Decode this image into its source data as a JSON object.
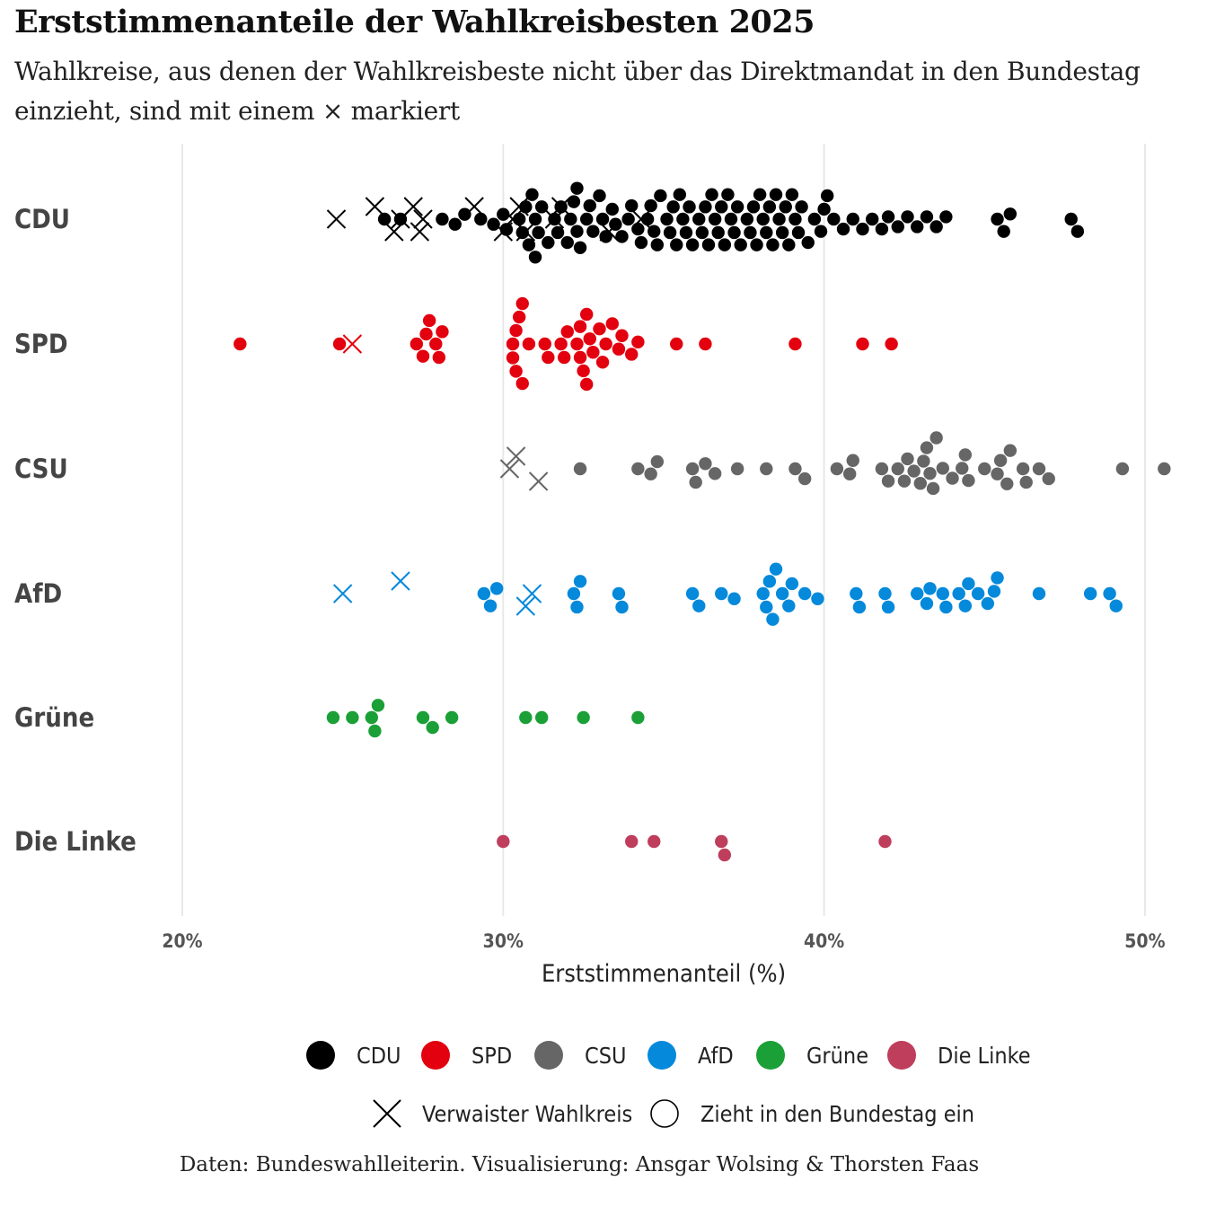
{
  "title": "Erststimmenanteile der Wahlkreisbesten 2025",
  "subtitle": "Wahlkreise, aus denen der Wahlkreisbeste nicht über das Direktmandat in den Bundestag einzieht, sind mit einem × markiert",
  "caption": "Daten: Bundeswahlleiterin. Visualisierung: Ansgar Wolsing & Thorsten Faas",
  "colors": {
    "CDU": "#000000",
    "SPD": "#e3000f",
    "CSU": "#666666",
    "AfD": "#0489db",
    "Grüne": "#1aa037",
    "Die Linke": "#be3e5c",
    "grid": "#e8e8e8"
  },
  "chart_data": {
    "type": "scatter",
    "subtype": "beeswarm",
    "title": "Erststimmenanteile der Wahlkreisbesten 2025",
    "xlabel": "Erststimmenanteil (%)",
    "ylabel": "",
    "xlim": [
      17,
      51
    ],
    "x_ticks": [
      20,
      30,
      40,
      50
    ],
    "x_tick_labels": [
      "20%",
      "30%",
      "40%",
      "50%"
    ],
    "categories": [
      "CDU",
      "SPD",
      "CSU",
      "AfD",
      "Grüne",
      "Die Linke"
    ],
    "grid": true,
    "legend_position": "bottom",
    "legend": {
      "parties": [
        "CDU",
        "SPD",
        "CSU",
        "AfD",
        "Grüne",
        "Die Linke"
      ],
      "shapes": [
        {
          "shape": "cross",
          "label": "Verwaister Wahlkreis"
        },
        {
          "shape": "circle",
          "label": "Zieht in den Bundestag ein"
        }
      ]
    },
    "series": [
      {
        "name": "CDU",
        "values": [
          26.3,
          26.8,
          28.1,
          28.5,
          28.8,
          29.3,
          29.7,
          30.0,
          30.1,
          30.5,
          30.6,
          30.7,
          30.8,
          30.9,
          31.0,
          31.0,
          31.1,
          31.2,
          31.4,
          31.6,
          31.7,
          31.8,
          32.0,
          32.1,
          32.2,
          32.3,
          32.3,
          32.4,
          32.6,
          32.7,
          32.8,
          33.0,
          33.1,
          33.2,
          33.4,
          33.5,
          33.7,
          33.9,
          34.0,
          34.2,
          34.3,
          34.5,
          34.6,
          34.7,
          34.8,
          34.9,
          35.1,
          35.2,
          35.3,
          35.4,
          35.5,
          35.6,
          35.7,
          35.8,
          35.9,
          36.1,
          36.2,
          36.3,
          36.4,
          36.5,
          36.6,
          36.7,
          36.8,
          36.9,
          37.0,
          37.1,
          37.2,
          37.3,
          37.4,
          37.6,
          37.7,
          37.8,
          37.9,
          38.0,
          38.1,
          38.2,
          38.3,
          38.4,
          38.5,
          38.6,
          38.7,
          38.8,
          38.9,
          39.0,
          39.1,
          39.2,
          39.3,
          39.5,
          39.7,
          39.9,
          40.0,
          40.1,
          40.3,
          40.6,
          40.9,
          41.2,
          41.5,
          41.8,
          42.0,
          42.3,
          42.6,
          42.9,
          43.2,
          43.5,
          43.8,
          45.4,
          45.6,
          45.8,
          47.7,
          47.9
        ],
        "orphaned": [
          24.8,
          26.0,
          26.6,
          26.8,
          27.2,
          27.4,
          27.5,
          29.1,
          30.0,
          30.3,
          30.5,
          30.7,
          31.6,
          31.8,
          33.3,
          34.3
        ]
      },
      {
        "name": "SPD",
        "values": [
          21.8,
          24.9,
          27.3,
          27.5,
          27.6,
          27.7,
          27.9,
          28.0,
          28.1,
          30.3,
          30.3,
          30.4,
          30.4,
          30.5,
          30.6,
          30.6,
          30.8,
          31.3,
          31.4,
          31.8,
          31.9,
          32.0,
          32.3,
          32.4,
          32.4,
          32.5,
          32.6,
          32.6,
          32.7,
          32.8,
          33.0,
          33.1,
          33.2,
          33.4,
          33.6,
          33.7,
          34.0,
          34.2,
          35.4,
          36.3,
          39.1,
          41.2,
          42.1
        ],
        "orphaned": [
          25.3
        ]
      },
      {
        "name": "CSU",
        "values": [
          32.4,
          34.2,
          34.6,
          34.8,
          35.9,
          36.0,
          36.3,
          36.6,
          37.3,
          38.2,
          39.1,
          39.4,
          40.4,
          40.8,
          40.9,
          41.8,
          42.0,
          42.3,
          42.5,
          42.6,
          42.8,
          43.0,
          43.1,
          43.2,
          43.3,
          43.4,
          43.5,
          43.7,
          44.0,
          44.3,
          44.4,
          44.5,
          45.0,
          45.4,
          45.5,
          45.7,
          45.8,
          46.2,
          46.3,
          46.7,
          47.0,
          49.3,
          50.6
        ],
        "orphaned": [
          30.2,
          30.4,
          31.1
        ]
      },
      {
        "name": "AfD",
        "values": [
          29.4,
          29.6,
          29.8,
          32.2,
          32.3,
          32.4,
          33.6,
          33.7,
          35.9,
          36.1,
          36.8,
          37.2,
          38.1,
          38.2,
          38.3,
          38.4,
          38.5,
          38.7,
          38.9,
          39.0,
          39.4,
          39.8,
          41.0,
          41.1,
          41.9,
          42.0,
          42.9,
          43.2,
          43.3,
          43.7,
          43.8,
          44.2,
          44.4,
          44.5,
          44.8,
          45.1,
          45.3,
          45.4,
          46.7,
          48.3,
          48.9,
          49.1
        ],
        "orphaned": [
          25.0,
          26.8,
          30.7,
          30.9
        ]
      },
      {
        "name": "Grüne",
        "values": [
          24.7,
          25.3,
          25.9,
          26.0,
          26.1,
          27.5,
          27.8,
          28.4,
          30.7,
          31.2,
          32.5,
          34.2
        ],
        "orphaned": []
      },
      {
        "name": "Die Linke",
        "values": [
          30.0,
          34.0,
          34.7,
          36.8,
          36.9,
          41.9
        ],
        "orphaned": []
      }
    ]
  }
}
